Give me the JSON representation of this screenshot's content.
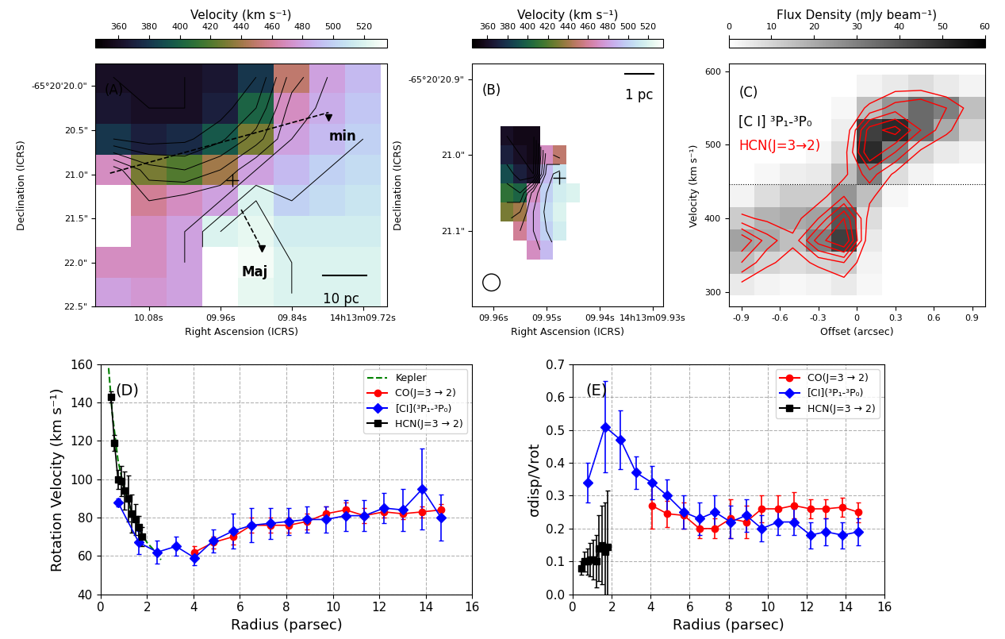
{
  "chart_data": [
    {
      "type": "heatmap",
      "colorbar_label": "Velocity (km s⁻¹)",
      "colorbar_range": [
        345,
        535
      ],
      "colorbar_ticks": [
        360,
        380,
        400,
        420,
        440,
        460,
        480,
        500,
        520
      ],
      "xlabel": "Right Ascension (ICRS)",
      "ylabel": "Declination (ICRS)",
      "xlim": [
        10.17,
        9.68
      ],
      "ylim": [
        22.5,
        19.75
      ],
      "xticks": [
        {
          "value": 10.08,
          "label": "10.08s"
        },
        {
          "value": 9.96,
          "label": "09.96s"
        },
        {
          "value": 9.84,
          "label": "09.84s"
        },
        {
          "value": 9.72,
          "label": "14h13m09.72s"
        }
      ],
      "yticks": [
        {
          "value": 20.0,
          "label": "-65°20'20.0\""
        },
        {
          "value": 20.5,
          "label": "20.5\""
        },
        {
          "value": 21.0,
          "label": "21.0\""
        },
        {
          "value": 21.5,
          "label": "21.5\""
        },
        {
          "value": 22.0,
          "label": "22.0\""
        },
        {
          "value": 22.5,
          "label": "22.5\""
        }
      ],
      "x": [
        10.14,
        10.08,
        10.02,
        9.96,
        9.9,
        9.84,
        9.78,
        9.72
      ],
      "y": [
        19.9,
        20.25,
        20.6,
        20.95,
        21.3,
        21.65,
        22.0,
        22.35
      ],
      "values": [
        [
          360,
          360,
          360,
          365,
          380,
          450,
          480,
          490
        ],
        [
          365,
          360,
          360,
          370,
          400,
          470,
          485,
          495
        ],
        [
          380,
          370,
          375,
          395,
          430,
          480,
          490,
          500
        ],
        [
          470,
          430,
          420,
          440,
          480,
          490,
          500,
          505
        ],
        [
          null,
          460,
          470,
          480,
          520,
          500,
          505,
          510
        ],
        [
          null,
          470,
          480,
          520,
          525,
          515,
          515,
          515
        ],
        [
          470,
          470,
          480,
          null,
          530,
          520,
          520,
          520
        ],
        [
          480,
          475,
          480,
          null,
          525,
          520,
          520,
          520
        ]
      ],
      "annotations": [
        "(A)",
        "min",
        "Maj",
        "10 pc"
      ]
    },
    {
      "type": "heatmap",
      "colorbar_label": "Velocity (km s⁻¹)",
      "colorbar_range": [
        345,
        535
      ],
      "colorbar_ticks": [
        360,
        380,
        400,
        420,
        440,
        460,
        480,
        500,
        520
      ],
      "xlabel": "Right Ascension (ICRS)",
      "ylabel": "Declination (ICRS)",
      "xlim": [
        9.964,
        9.928
      ],
      "ylim": [
        21.2,
        20.88
      ],
      "xticks": [
        {
          "value": 9.96,
          "label": "09.96s"
        },
        {
          "value": 9.95,
          "label": "09.95s"
        },
        {
          "value": 9.94,
          "label": "09.94s"
        },
        {
          "value": 9.93,
          "label": "14h13m09.93s"
        }
      ],
      "yticks": [
        {
          "value": 20.9,
          "label": "-65°20'20.9\""
        },
        {
          "value": 21.0,
          "label": "21.0\""
        },
        {
          "value": 21.1,
          "label": "21.1\""
        }
      ],
      "x": [
        9.9575,
        9.955,
        9.9525,
        9.95,
        9.9475,
        9.945
      ],
      "y": [
        20.975,
        21.0,
        21.025,
        21.05,
        21.075,
        21.1,
        21.125
      ],
      "values": [
        [
          360,
          355,
          355,
          null,
          null,
          null
        ],
        [
          370,
          360,
          355,
          470,
          450,
          null
        ],
        [
          390,
          370,
          360,
          490,
          510,
          null
        ],
        [
          410,
          400,
          470,
          500,
          515,
          520
        ],
        [
          430,
          440,
          480,
          505,
          520,
          null
        ],
        [
          null,
          460,
          480,
          500,
          515,
          null
        ],
        [
          null,
          null,
          470,
          490,
          null,
          null
        ]
      ],
      "annotations": [
        "(B)",
        "1 pc"
      ]
    },
    {
      "type": "heatmap",
      "colorbar_label": "Flux Density (mJy beam⁻¹)",
      "colorbar_range": [
        0,
        60
      ],
      "colorbar_ticks": [
        0,
        10,
        20,
        30,
        40,
        50,
        60
      ],
      "xlabel": "Offset (arcsec)",
      "ylabel": "Velocity (km s⁻¹)",
      "xlim": [
        -1.0,
        1.0
      ],
      "ylim": [
        280,
        610
      ],
      "xticks": [
        -0.9,
        -0.6,
        -0.3,
        0,
        0.3,
        0.6,
        0.9
      ],
      "yticks": [
        300,
        400,
        500,
        600
      ],
      "x": [
        -0.9,
        -0.7,
        -0.5,
        -0.3,
        -0.1,
        0.1,
        0.3,
        0.5,
        0.7,
        0.9
      ],
      "y": [
        310,
        340,
        370,
        400,
        430,
        460,
        490,
        520,
        550,
        580
      ],
      "values": [
        [
          5,
          3,
          2,
          3,
          5,
          2,
          0,
          0,
          0,
          0
        ],
        [
          15,
          10,
          8,
          10,
          12,
          3,
          0,
          0,
          0,
          0
        ],
        [
          22,
          20,
          15,
          30,
          45,
          5,
          0,
          0,
          0,
          0
        ],
        [
          12,
          18,
          20,
          22,
          40,
          8,
          0,
          0,
          0,
          0
        ],
        [
          3,
          8,
          12,
          12,
          25,
          15,
          2,
          0,
          0,
          0
        ],
        [
          0,
          2,
          4,
          5,
          15,
          30,
          8,
          3,
          0,
          0
        ],
        [
          0,
          0,
          0,
          2,
          8,
          50,
          30,
          10,
          5,
          3
        ],
        [
          0,
          0,
          0,
          0,
          4,
          45,
          50,
          35,
          20,
          10
        ],
        [
          0,
          0,
          0,
          0,
          2,
          15,
          25,
          35,
          30,
          15
        ],
        [
          0,
          0,
          0,
          0,
          0,
          3,
          5,
          8,
          5,
          3
        ]
      ],
      "contours": {
        "name": "HCN(J=3→2)",
        "color": "red",
        "levels": [
          4,
          8,
          12,
          16,
          20
        ],
        "values": [
          [
            3,
            0,
            0,
            0,
            2,
            0,
            0,
            0,
            0,
            0
          ],
          [
            12,
            5,
            2,
            5,
            8,
            0,
            0,
            0,
            0,
            0
          ],
          [
            20,
            10,
            5,
            18,
            25,
            0,
            0,
            0,
            0,
            0
          ],
          [
            5,
            3,
            2,
            8,
            20,
            2,
            0,
            0,
            0,
            0
          ],
          [
            0,
            0,
            0,
            2,
            8,
            5,
            0,
            0,
            0,
            0
          ],
          [
            0,
            0,
            0,
            0,
            3,
            10,
            3,
            0,
            0,
            0
          ],
          [
            0,
            0,
            0,
            0,
            2,
            20,
            12,
            3,
            0,
            0
          ],
          [
            0,
            0,
            0,
            0,
            0,
            18,
            22,
            12,
            5,
            0
          ],
          [
            0,
            0,
            0,
            0,
            0,
            5,
            10,
            12,
            8,
            2
          ],
          [
            0,
            0,
            0,
            0,
            0,
            0,
            2,
            2,
            0,
            0
          ]
        ]
      },
      "hline": 447,
      "annotations": [
        "(C)",
        "[C I] ³P₁-³P₀"
      ]
    },
    {
      "type": "line",
      "xlabel": "Radius (parsec)",
      "ylabel": "Rotation Velocity (km s⁻¹)",
      "xlim": [
        0,
        16
      ],
      "ylim": [
        40,
        160
      ],
      "xticks": [
        0,
        2,
        4,
        6,
        8,
        10,
        12,
        14,
        16
      ],
      "yticks": [
        40,
        60,
        80,
        100,
        120,
        140,
        160
      ],
      "grid": true,
      "legend": "upper right",
      "series": [
        {
          "name": "Kepler",
          "color": "green",
          "marker": "none",
          "line_style": "dashed",
          "x": [
            0.35,
            0.5,
            0.75,
            1.0,
            1.25,
            1.5,
            1.75,
            2.0,
            2.3,
            2.6
          ],
          "values": [
            158,
            135,
            110,
            96,
            86,
            78,
            72,
            67,
            63,
            58
          ]
        },
        {
          "name": "CO(J=3 → 2)",
          "color": "red",
          "marker": "circle",
          "line_style": "solid",
          "x": [
            4.05,
            4.85,
            5.7,
            6.5,
            7.3,
            8.1,
            8.9,
            9.7,
            10.55,
            11.35,
            12.2,
            13.0,
            13.85,
            14.65
          ],
          "values": [
            62,
            67,
            70,
            76,
            76,
            76,
            78,
            82,
            84,
            81,
            83,
            82,
            83,
            84
          ],
          "errors": [
            3,
            3,
            4,
            4,
            4,
            4,
            4,
            4,
            4,
            4,
            3,
            3,
            3,
            3
          ]
        },
        {
          "name": "[CI](³P₁-³P₀)",
          "color": "blue",
          "marker": "diamond",
          "line_style": "solid",
          "x": [
            0.75,
            1.65,
            2.45,
            3.25,
            4.05,
            4.85,
            5.7,
            6.5,
            7.3,
            8.1,
            8.9,
            9.7,
            10.55,
            11.35,
            12.2,
            13.0,
            13.85,
            14.65
          ],
          "values": [
            88,
            67,
            62,
            65,
            59,
            68,
            73,
            76,
            77,
            78,
            79,
            79,
            81,
            81,
            85,
            84,
            95,
            80
          ],
          "errors": [
            2,
            6,
            6,
            5,
            4,
            6,
            9,
            9,
            8,
            7,
            7,
            7,
            8,
            8,
            8,
            11,
            21,
            12
          ]
        },
        {
          "name": "HCN(J=3 → 2)",
          "color": "black",
          "marker": "square",
          "line_style": "solid",
          "x": [
            0.45,
            0.6,
            0.75,
            0.9,
            1.05,
            1.2,
            1.35,
            1.5,
            1.65,
            1.8
          ],
          "values": [
            143,
            119,
            100,
            99,
            94,
            90,
            82,
            79,
            75,
            70
          ],
          "errors": [
            3,
            4,
            5,
            8,
            10,
            12,
            10,
            8,
            6,
            5
          ]
        }
      ],
      "annotations": [
        "(D)"
      ]
    },
    {
      "type": "line",
      "xlabel": "Radius (parsec)",
      "ylabel": "σdisp/Vrot",
      "xlim": [
        0,
        16
      ],
      "ylim": [
        0,
        0.7
      ],
      "xticks": [
        0,
        2,
        4,
        6,
        8,
        10,
        12,
        14,
        16
      ],
      "yticks": [
        {
          "value": 0,
          "label": "0.0"
        },
        0.1,
        0.2,
        0.3,
        0.4,
        0.5,
        0.6,
        0.7
      ],
      "grid": true,
      "legend": "upper right",
      "series": [
        {
          "name": "CO(J=3 → 2)",
          "color": "red",
          "marker": "circle",
          "line_style": "solid",
          "x": [
            4.05,
            4.85,
            5.7,
            6.5,
            7.3,
            8.1,
            8.9,
            9.7,
            10.55,
            11.35,
            12.2,
            13.0,
            13.85,
            14.65
          ],
          "values": [
            0.27,
            0.245,
            0.24,
            0.2,
            0.2,
            0.23,
            0.22,
            0.26,
            0.26,
            0.27,
            0.26,
            0.26,
            0.265,
            0.25
          ],
          "errors": [
            0.07,
            0.04,
            0.04,
            0.03,
            0.03,
            0.06,
            0.05,
            0.04,
            0.04,
            0.04,
            0.03,
            0.03,
            0.03,
            0.03
          ]
        },
        {
          "name": "[CI](³P₁-³P₀)",
          "color": "blue",
          "marker": "diamond",
          "line_style": "solid",
          "x": [
            0.75,
            1.65,
            2.45,
            3.25,
            4.05,
            4.85,
            5.7,
            6.5,
            7.3,
            8.1,
            8.9,
            9.7,
            10.55,
            11.35,
            12.2,
            13.0,
            13.85,
            14.65
          ],
          "values": [
            0.34,
            0.51,
            0.47,
            0.37,
            0.34,
            0.3,
            0.25,
            0.23,
            0.25,
            0.22,
            0.24,
            0.2,
            0.22,
            0.22,
            0.18,
            0.19,
            0.18,
            0.19
          ],
          "errors": [
            0.06,
            0.14,
            0.09,
            0.05,
            0.05,
            0.05,
            0.05,
            0.05,
            0.05,
            0.05,
            0.05,
            0.04,
            0.04,
            0.04,
            0.04,
            0.04,
            0.04,
            0.04
          ]
        },
        {
          "name": "HCN(J=3 → 2)",
          "color": "black",
          "marker": "square",
          "line_style": "solid",
          "x": [
            0.45,
            0.6,
            0.75,
            0.9,
            1.05,
            1.2,
            1.35,
            1.5,
            1.65,
            1.8
          ],
          "values": [
            0.08,
            0.1,
            0.1,
            0.105,
            0.105,
            0.1,
            0.14,
            0.15,
            0.13,
            0.145
          ],
          "errors": [
            0.02,
            0.03,
            0.04,
            0.05,
            0.06,
            0.08,
            0.1,
            0.12,
            0.15,
            0.17
          ]
        }
      ],
      "annotations": [
        "(E)"
      ]
    }
  ]
}
